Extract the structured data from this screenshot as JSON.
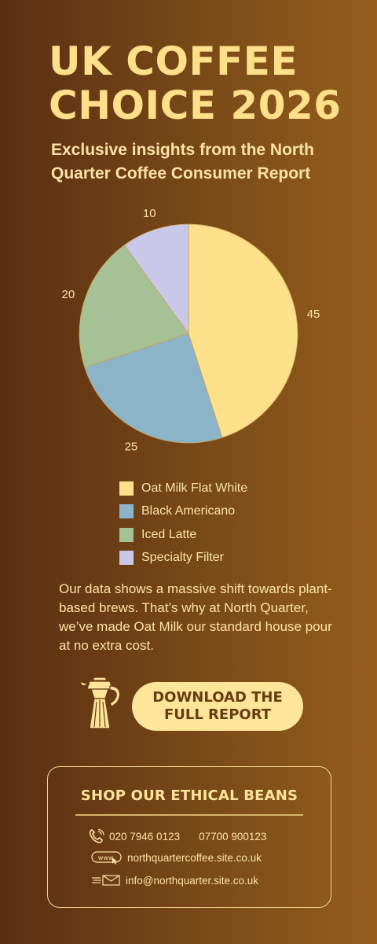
{
  "title_lines": [
    "UK COFFEE",
    "CHOICE 2026"
  ],
  "subtitle": "Exclusive insights from the North Quarter Coffee Consumer Report",
  "chart_data": {
    "type": "pie",
    "labels": [
      "Oat Milk Flat White",
      "Black Americano",
      "Iced Latte",
      "Specialty Filter"
    ],
    "values": [
      45,
      25,
      20,
      10
    ],
    "colors": [
      "#fde08a",
      "#8bb4c9",
      "#a6c195",
      "#c9c8e8"
    ],
    "data_labels": [
      "45",
      "25",
      "20",
      "10"
    ],
    "legend_position": "bottom"
  },
  "body_text": "Our data shows a massive shift towards plant-based brews. That’s why at North Quarter, we’ve made Oat Milk our standard house pour at no extra cost.",
  "download_button": "DOWNLOAD THE FULL REPORT",
  "shop": {
    "title": "SHOP OUR ETHICAL BEANS",
    "phone_1": "020 7946 0123",
    "phone_2": "07700 900123",
    "website": "northquartercoffee.site.co.uk",
    "email": "info@northquarter.site.co.uk",
    "www_label": "www."
  },
  "icons": [
    "coffee-pot-icon",
    "phone-icon",
    "web-icon",
    "mail-icon"
  ]
}
